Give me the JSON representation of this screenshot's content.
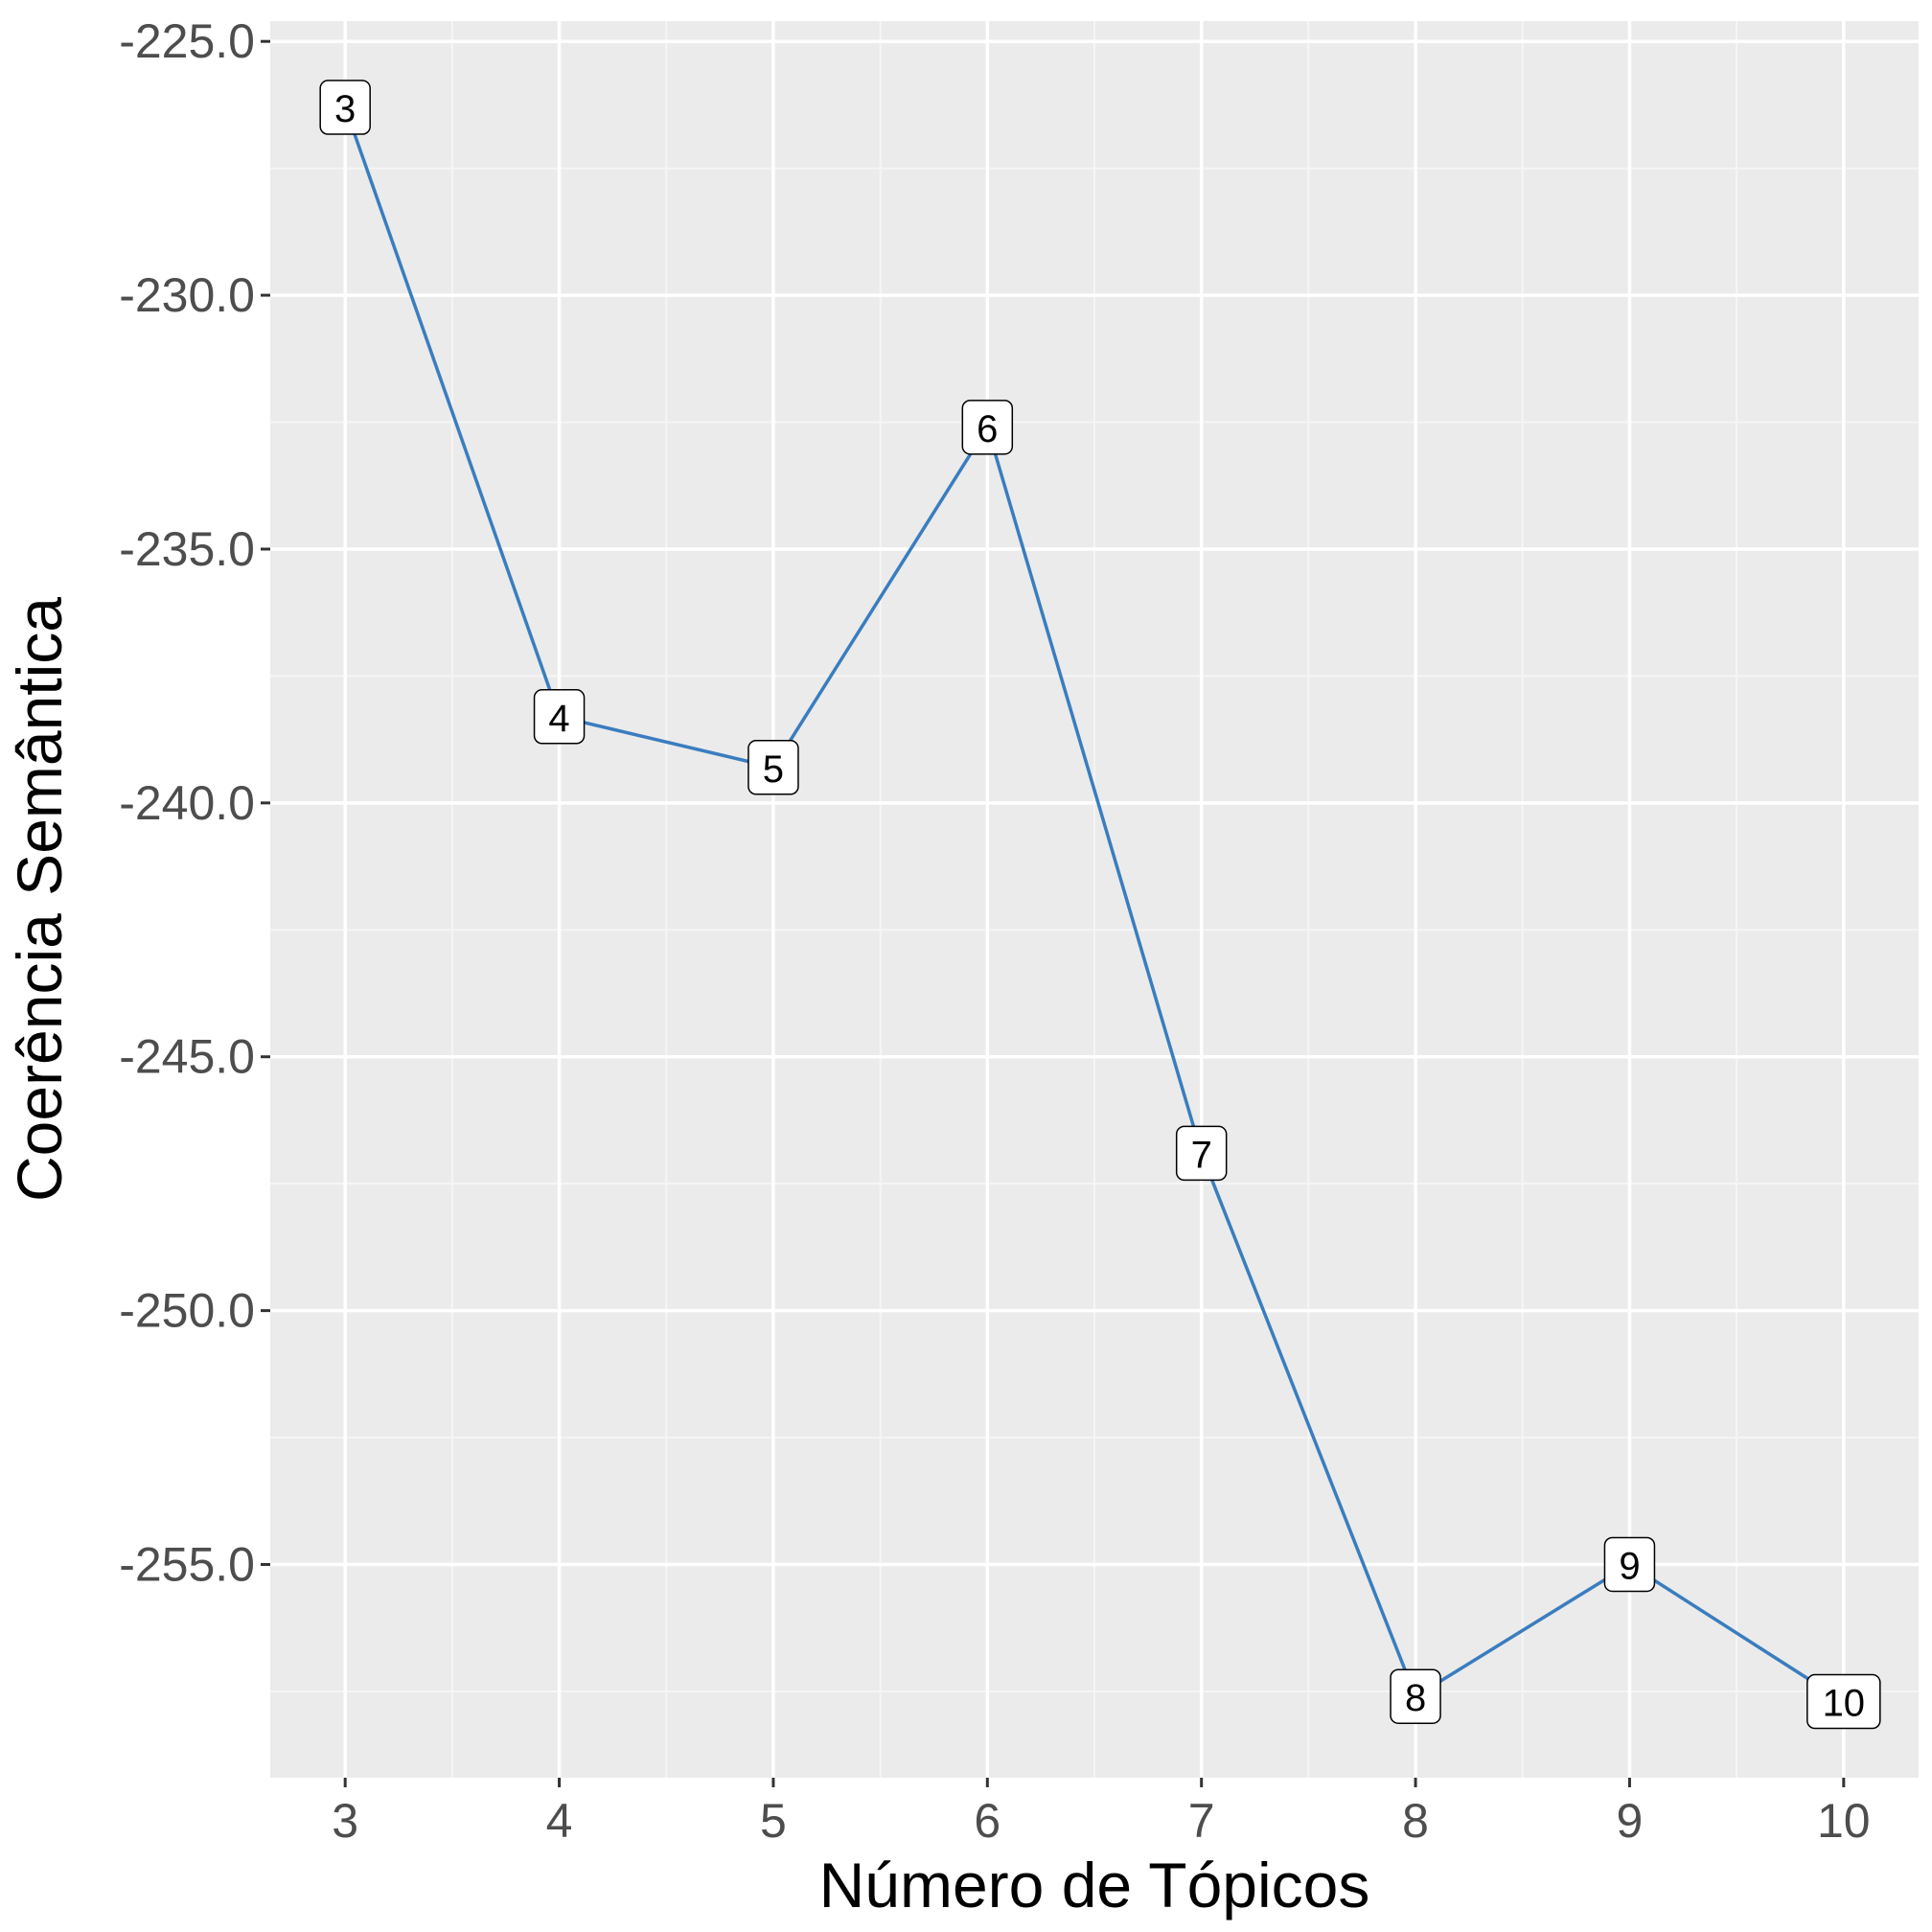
{
  "chart_data": {
    "type": "line",
    "title": "",
    "xlabel": "Número de Tópicos",
    "ylabel": "Coerência Semântica",
    "x": [
      3,
      4,
      5,
      6,
      7,
      8,
      9,
      10
    ],
    "x_tick_labels": [
      "3",
      "4",
      "5",
      "6",
      "7",
      "8",
      "9",
      "10"
    ],
    "y_ticks": [
      -225,
      -230,
      -235,
      -240,
      -245,
      -250,
      -255
    ],
    "y_tick_labels": [
      "-225.0",
      "-230.0",
      "-235.0",
      "-240.0",
      "-245.0",
      "-250.0",
      "-255.0"
    ],
    "xlim": [
      2.65,
      10.35
    ],
    "ylim": [
      -259.2,
      -224.6
    ],
    "grid": true,
    "series": [
      {
        "name": "Coerência Semântica",
        "values": [
          -226.3,
          -238.3,
          -239.3,
          -232.6,
          -246.9,
          -257.6,
          -255.0,
          -257.7
        ],
        "point_labels": [
          "3",
          "4",
          "5",
          "6",
          "7",
          "8",
          "9",
          "10"
        ]
      }
    ]
  },
  "colors": {
    "panel_background": "#ebebeb",
    "grid_major": "#ffffff",
    "grid_minor": "#f5f5f5",
    "line": "#3a7dbf",
    "label_fill": "#ffffff",
    "label_border": "#000000",
    "tick_mark": "#333333"
  }
}
